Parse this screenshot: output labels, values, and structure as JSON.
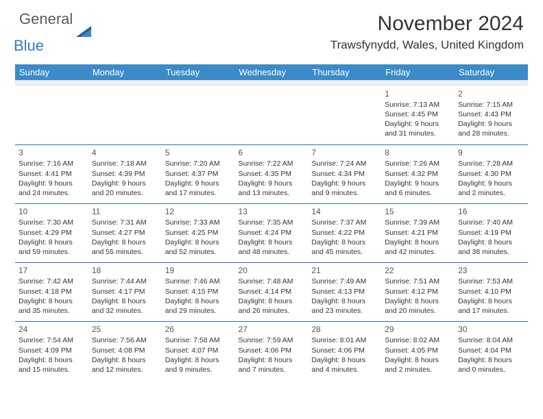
{
  "brand": {
    "part1": "General",
    "part2": "Blue"
  },
  "title": "November 2024",
  "location": "Trawsfynydd, Wales, United Kingdom",
  "colors": {
    "header_bg": "#3b8bc9",
    "border": "#2f6ea8",
    "gray_row": "#ededed",
    "logo_blue": "#2f7bbf",
    "logo_gray": "#5a5a5a"
  },
  "weekdays": [
    "Sunday",
    "Monday",
    "Tuesday",
    "Wednesday",
    "Thursday",
    "Friday",
    "Saturday"
  ],
  "weeks": [
    [
      null,
      null,
      null,
      null,
      null,
      {
        "n": "1",
        "sr": "Sunrise: 7:13 AM",
        "ss": "Sunset: 4:45 PM",
        "d1": "Daylight: 9 hours",
        "d2": "and 31 minutes."
      },
      {
        "n": "2",
        "sr": "Sunrise: 7:15 AM",
        "ss": "Sunset: 4:43 PM",
        "d1": "Daylight: 9 hours",
        "d2": "and 28 minutes."
      }
    ],
    [
      {
        "n": "3",
        "sr": "Sunrise: 7:16 AM",
        "ss": "Sunset: 4:41 PM",
        "d1": "Daylight: 9 hours",
        "d2": "and 24 minutes."
      },
      {
        "n": "4",
        "sr": "Sunrise: 7:18 AM",
        "ss": "Sunset: 4:39 PM",
        "d1": "Daylight: 9 hours",
        "d2": "and 20 minutes."
      },
      {
        "n": "5",
        "sr": "Sunrise: 7:20 AM",
        "ss": "Sunset: 4:37 PM",
        "d1": "Daylight: 9 hours",
        "d2": "and 17 minutes."
      },
      {
        "n": "6",
        "sr": "Sunrise: 7:22 AM",
        "ss": "Sunset: 4:35 PM",
        "d1": "Daylight: 9 hours",
        "d2": "and 13 minutes."
      },
      {
        "n": "7",
        "sr": "Sunrise: 7:24 AM",
        "ss": "Sunset: 4:34 PM",
        "d1": "Daylight: 9 hours",
        "d2": "and 9 minutes."
      },
      {
        "n": "8",
        "sr": "Sunrise: 7:26 AM",
        "ss": "Sunset: 4:32 PM",
        "d1": "Daylight: 9 hours",
        "d2": "and 6 minutes."
      },
      {
        "n": "9",
        "sr": "Sunrise: 7:28 AM",
        "ss": "Sunset: 4:30 PM",
        "d1": "Daylight: 9 hours",
        "d2": "and 2 minutes."
      }
    ],
    [
      {
        "n": "10",
        "sr": "Sunrise: 7:30 AM",
        "ss": "Sunset: 4:29 PM",
        "d1": "Daylight: 8 hours",
        "d2": "and 59 minutes."
      },
      {
        "n": "11",
        "sr": "Sunrise: 7:31 AM",
        "ss": "Sunset: 4:27 PM",
        "d1": "Daylight: 8 hours",
        "d2": "and 55 minutes."
      },
      {
        "n": "12",
        "sr": "Sunrise: 7:33 AM",
        "ss": "Sunset: 4:25 PM",
        "d1": "Daylight: 8 hours",
        "d2": "and 52 minutes."
      },
      {
        "n": "13",
        "sr": "Sunrise: 7:35 AM",
        "ss": "Sunset: 4:24 PM",
        "d1": "Daylight: 8 hours",
        "d2": "and 48 minutes."
      },
      {
        "n": "14",
        "sr": "Sunrise: 7:37 AM",
        "ss": "Sunset: 4:22 PM",
        "d1": "Daylight: 8 hours",
        "d2": "and 45 minutes."
      },
      {
        "n": "15",
        "sr": "Sunrise: 7:39 AM",
        "ss": "Sunset: 4:21 PM",
        "d1": "Daylight: 8 hours",
        "d2": "and 42 minutes."
      },
      {
        "n": "16",
        "sr": "Sunrise: 7:40 AM",
        "ss": "Sunset: 4:19 PM",
        "d1": "Daylight: 8 hours",
        "d2": "and 38 minutes."
      }
    ],
    [
      {
        "n": "17",
        "sr": "Sunrise: 7:42 AM",
        "ss": "Sunset: 4:18 PM",
        "d1": "Daylight: 8 hours",
        "d2": "and 35 minutes."
      },
      {
        "n": "18",
        "sr": "Sunrise: 7:44 AM",
        "ss": "Sunset: 4:17 PM",
        "d1": "Daylight: 8 hours",
        "d2": "and 32 minutes."
      },
      {
        "n": "19",
        "sr": "Sunrise: 7:46 AM",
        "ss": "Sunset: 4:15 PM",
        "d1": "Daylight: 8 hours",
        "d2": "and 29 minutes."
      },
      {
        "n": "20",
        "sr": "Sunrise: 7:48 AM",
        "ss": "Sunset: 4:14 PM",
        "d1": "Daylight: 8 hours",
        "d2": "and 26 minutes."
      },
      {
        "n": "21",
        "sr": "Sunrise: 7:49 AM",
        "ss": "Sunset: 4:13 PM",
        "d1": "Daylight: 8 hours",
        "d2": "and 23 minutes."
      },
      {
        "n": "22",
        "sr": "Sunrise: 7:51 AM",
        "ss": "Sunset: 4:12 PM",
        "d1": "Daylight: 8 hours",
        "d2": "and 20 minutes."
      },
      {
        "n": "23",
        "sr": "Sunrise: 7:53 AM",
        "ss": "Sunset: 4:10 PM",
        "d1": "Daylight: 8 hours",
        "d2": "and 17 minutes."
      }
    ],
    [
      {
        "n": "24",
        "sr": "Sunrise: 7:54 AM",
        "ss": "Sunset: 4:09 PM",
        "d1": "Daylight: 8 hours",
        "d2": "and 15 minutes."
      },
      {
        "n": "25",
        "sr": "Sunrise: 7:56 AM",
        "ss": "Sunset: 4:08 PM",
        "d1": "Daylight: 8 hours",
        "d2": "and 12 minutes."
      },
      {
        "n": "26",
        "sr": "Sunrise: 7:58 AM",
        "ss": "Sunset: 4:07 PM",
        "d1": "Daylight: 8 hours",
        "d2": "and 9 minutes."
      },
      {
        "n": "27",
        "sr": "Sunrise: 7:59 AM",
        "ss": "Sunset: 4:06 PM",
        "d1": "Daylight: 8 hours",
        "d2": "and 7 minutes."
      },
      {
        "n": "28",
        "sr": "Sunrise: 8:01 AM",
        "ss": "Sunset: 4:06 PM",
        "d1": "Daylight: 8 hours",
        "d2": "and 4 minutes."
      },
      {
        "n": "29",
        "sr": "Sunrise: 8:02 AM",
        "ss": "Sunset: 4:05 PM",
        "d1": "Daylight: 8 hours",
        "d2": "and 2 minutes."
      },
      {
        "n": "30",
        "sr": "Sunrise: 8:04 AM",
        "ss": "Sunset: 4:04 PM",
        "d1": "Daylight: 8 hours",
        "d2": "and 0 minutes."
      }
    ]
  ]
}
